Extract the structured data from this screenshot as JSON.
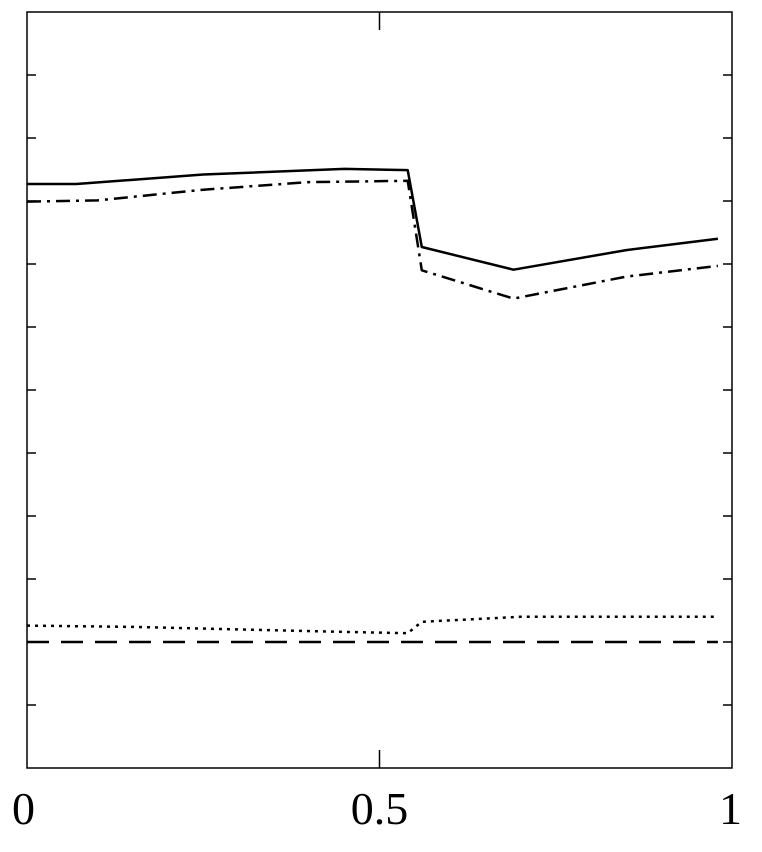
{
  "chart_data": {
    "type": "line",
    "title": "",
    "xlabel": "",
    "ylabel": "",
    "xlim": [
      0,
      1
    ],
    "ylim": [
      0,
      12
    ],
    "x_ticks": [
      0,
      0.5,
      1
    ],
    "x_tick_labels": [
      "0",
      "0.5",
      "1"
    ],
    "y_ticks": [
      1,
      2,
      3,
      4,
      5,
      6,
      7,
      8,
      9,
      10,
      11
    ],
    "y_tick_labels": [],
    "grid": false,
    "legend": "none",
    "series": [
      {
        "style": "solid",
        "color": "#000000",
        "points": [
          [
            0.0,
            9.27
          ],
          [
            0.07,
            9.27
          ],
          [
            0.25,
            9.42
          ],
          [
            0.45,
            9.51
          ],
          [
            0.54,
            9.49
          ],
          [
            0.56,
            8.27
          ],
          [
            0.69,
            7.91
          ],
          [
            0.85,
            8.22
          ],
          [
            0.98,
            8.4
          ]
        ]
      },
      {
        "style": "dashdot",
        "color": "#000000",
        "points": [
          [
            0.0,
            8.99
          ],
          [
            0.1,
            9.01
          ],
          [
            0.25,
            9.18
          ],
          [
            0.4,
            9.3
          ],
          [
            0.54,
            9.32
          ],
          [
            0.56,
            7.9
          ],
          [
            0.69,
            7.45
          ],
          [
            0.85,
            7.8
          ],
          [
            0.98,
            7.97
          ]
        ]
      },
      {
        "style": "dotted",
        "color": "#000000",
        "points": [
          [
            0.0,
            2.26
          ],
          [
            0.15,
            2.24
          ],
          [
            0.3,
            2.2
          ],
          [
            0.45,
            2.16
          ],
          [
            0.54,
            2.14
          ],
          [
            0.56,
            2.32
          ],
          [
            0.7,
            2.4
          ],
          [
            0.98,
            2.4
          ]
        ]
      },
      {
        "style": "dashed",
        "color": "#000000",
        "points": [
          [
            0.0,
            2.0
          ],
          [
            0.5,
            2.0
          ],
          [
            0.98,
            2.0
          ]
        ]
      }
    ]
  }
}
